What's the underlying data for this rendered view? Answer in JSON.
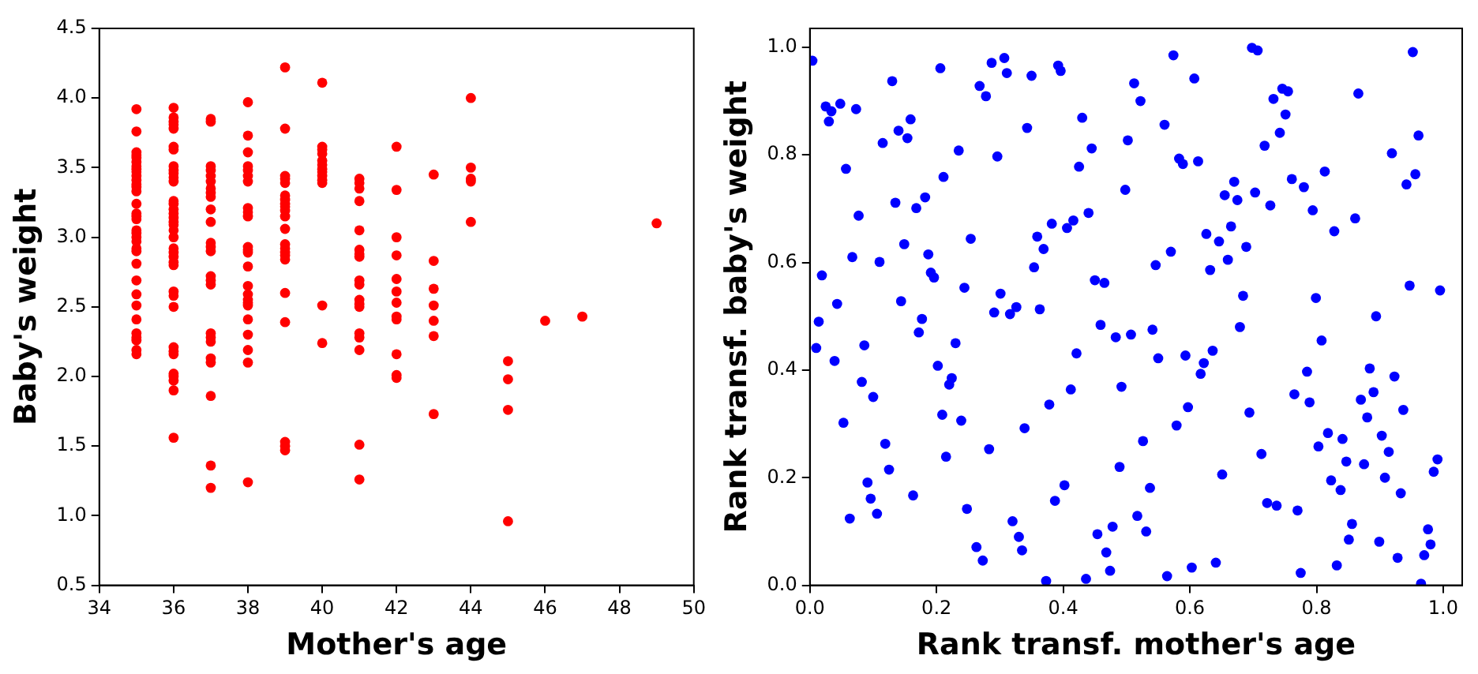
{
  "chart_data": [
    {
      "type": "scatter",
      "xlabel": "Mother's age",
      "ylabel": "Baby's weight",
      "marker": "circle",
      "grid": false,
      "xlim": [
        34,
        50
      ],
      "ylim": [
        0.5,
        4.5
      ],
      "xticks": [
        34,
        36,
        38,
        40,
        42,
        44,
        46,
        48,
        50
      ],
      "yticks": [
        {
          "value": 0.5,
          "label": "0.5"
        },
        {
          "value": 1,
          "label": "1.0"
        },
        {
          "value": 1.5,
          "label": "1.5"
        },
        {
          "value": 2,
          "label": "2.0"
        },
        {
          "value": 2.5,
          "label": "2.5"
        },
        {
          "value": 3,
          "label": "3.0"
        },
        {
          "value": 3.5,
          "label": "3.5"
        },
        {
          "value": 4,
          "label": "4.0"
        },
        {
          "value": 4.5,
          "label": "4.5"
        }
      ],
      "series": [
        {
          "color": "#ff0000",
          "x": [
            35,
            35,
            35,
            35,
            35,
            35,
            35,
            35,
            35,
            35,
            35,
            35,
            35,
            35,
            35,
            35,
            35,
            35,
            35,
            35,
            35,
            35,
            35,
            35,
            35,
            35,
            35,
            35,
            35,
            35,
            35,
            35,
            35,
            35,
            36,
            36,
            36,
            36,
            36,
            36,
            36,
            36,
            36,
            36,
            36,
            36,
            36,
            36,
            36,
            36,
            36,
            36,
            36,
            36,
            36,
            36,
            36,
            36,
            36,
            36,
            36,
            36,
            36,
            36,
            36,
            36,
            36,
            36,
            36,
            36,
            36,
            37,
            37,
            37,
            37,
            37,
            37,
            37,
            37,
            37,
            37,
            37,
            37,
            37,
            37,
            37,
            37,
            37,
            37,
            37,
            37,
            37,
            37,
            37,
            37,
            37,
            38,
            38,
            38,
            38,
            38,
            38,
            38,
            38,
            38,
            38,
            38,
            38,
            38,
            38,
            38,
            38,
            38,
            38,
            38,
            38,
            38,
            38,
            38,
            38,
            39,
            39,
            39,
            39,
            39,
            39,
            39,
            39,
            39,
            39,
            39,
            39,
            39,
            39,
            39,
            39,
            39,
            39,
            39,
            39,
            39,
            39,
            40,
            40,
            40,
            40,
            40,
            40,
            40,
            40,
            40,
            40,
            40,
            40,
            40,
            41,
            41,
            41,
            41,
            41,
            41,
            41,
            41,
            41,
            41,
            41,
            41,
            41,
            41,
            41,
            41,
            41,
            41,
            42,
            42,
            42,
            42,
            42,
            42,
            42,
            42,
            42,
            42,
            42,
            42,
            43,
            43,
            43,
            43,
            43,
            43,
            43,
            44,
            44,
            44,
            44,
            44,
            45,
            45,
            45,
            45,
            46,
            47,
            49
          ],
          "values": [
            3.92,
            3.76,
            3.61,
            3.59,
            3.57,
            3.54,
            3.51,
            3.49,
            3.47,
            3.44,
            3.41,
            3.38,
            3.36,
            3.33,
            3.24,
            3.17,
            3.15,
            3.13,
            3.05,
            3.03,
            3.0,
            2.97,
            2.92,
            2.9,
            2.81,
            2.69,
            2.59,
            2.51,
            2.41,
            2.31,
            2.28,
            2.26,
            2.19,
            2.16,
            3.93,
            3.86,
            3.83,
            3.81,
            3.78,
            3.65,
            3.63,
            3.51,
            3.48,
            3.46,
            3.43,
            3.4,
            3.26,
            3.24,
            3.2,
            3.17,
            3.14,
            3.11,
            3.09,
            3.05,
            3.0,
            2.92,
            2.89,
            2.86,
            2.82,
            2.8,
            2.61,
            2.58,
            2.5,
            2.21,
            2.18,
            2.16,
            2.02,
            2.0,
            1.97,
            1.9,
            1.56,
            3.85,
            3.83,
            3.51,
            3.48,
            3.44,
            3.4,
            3.35,
            3.32,
            3.29,
            3.2,
            3.11,
            2.96,
            2.93,
            2.9,
            2.72,
            2.69,
            2.66,
            2.31,
            2.28,
            2.25,
            2.13,
            2.1,
            1.86,
            1.36,
            1.2,
            3.97,
            3.73,
            3.61,
            3.51,
            3.48,
            3.44,
            3.4,
            3.21,
            3.18,
            3.15,
            2.93,
            2.91,
            2.89,
            2.79,
            2.65,
            2.59,
            2.55,
            2.53,
            2.51,
            2.41,
            2.3,
            2.19,
            2.1,
            1.24,
            4.22,
            3.78,
            3.44,
            3.42,
            3.39,
            3.3,
            3.27,
            3.24,
            3.22,
            3.19,
            3.15,
            3.06,
            2.95,
            2.92,
            2.89,
            2.87,
            2.84,
            2.6,
            2.39,
            1.53,
            1.5,
            1.47,
            4.11,
            3.65,
            3.63,
            3.6,
            3.55,
            3.52,
            3.49,
            3.47,
            3.44,
            3.41,
            3.39,
            2.51,
            2.24,
            3.42,
            3.39,
            3.35,
            3.26,
            3.05,
            2.91,
            2.88,
            2.86,
            2.69,
            2.66,
            2.55,
            2.52,
            2.5,
            2.31,
            2.28,
            2.19,
            1.51,
            1.26,
            3.65,
            3.34,
            3.0,
            2.87,
            2.7,
            2.61,
            2.53,
            2.43,
            2.41,
            2.16,
            2.01,
            1.99,
            3.45,
            2.83,
            2.63,
            2.51,
            2.4,
            2.29,
            1.73,
            4.0,
            3.5,
            3.42,
            3.4,
            3.11,
            2.11,
            1.98,
            1.76,
            0.96,
            2.4,
            2.43,
            3.1
          ]
        }
      ]
    },
    {
      "type": "scatter",
      "xlabel": "Rank transf. mother's age",
      "ylabel": "Rank transf. baby's weight",
      "marker": "circle",
      "grid": false,
      "xlim": [
        0,
        1.03
      ],
      "ylim": [
        0,
        1.035
      ],
      "xticks": [
        {
          "value": 0,
          "label": "0.0"
        },
        {
          "value": 0.2,
          "label": "0.2"
        },
        {
          "value": 0.4,
          "label": "0.4"
        },
        {
          "value": 0.6,
          "label": "0.6"
        },
        {
          "value": 0.8,
          "label": "0.8"
        },
        {
          "value": 1,
          "label": "1.0"
        }
      ],
      "yticks": [
        {
          "value": 0,
          "label": "0.0"
        },
        {
          "value": 0.2,
          "label": "0.2"
        },
        {
          "value": 0.4,
          "label": "0.4"
        },
        {
          "value": 0.6,
          "label": "0.6"
        },
        {
          "value": 0.8,
          "label": "0.8"
        },
        {
          "value": 1,
          "label": "1.0"
        }
      ],
      "series": [
        {
          "color": "#0000ff",
          "x": [
            0.004,
            0.206,
            0.307,
            0.287,
            0.311,
            0.392,
            0.396,
            0.35,
            0.13,
            0.268,
            0.278,
            0.025,
            0.048,
            0.034,
            0.073,
            0.03,
            0.159,
            0.14,
            0.154,
            0.343,
            0.43,
            0.115,
            0.235,
            0.296,
            0.445,
            0.057,
            0.425,
            0.211,
            0.182,
            0.135,
            0.168,
            0.077,
            0.44,
            0.382,
            0.416,
            0.406,
            0.359,
            0.254,
            0.149,
            0.369,
            0.067,
            0.187,
            0.11,
            0.354,
            0.191,
            0.196,
            0.019,
            0.244,
            0.45,
            0.465,
            0.301,
            0.144,
            0.043,
            0.014,
            0.177,
            0.291,
            0.316,
            0.326,
            0.363,
            0.459,
            0.483,
            0.01,
            0.172,
            0.086,
            0.039,
            0.23,
            0.421,
            0.202,
            0.224,
            0.22,
            0.082,
            0.1,
            0.412,
            0.492,
            0.489,
            0.378,
            0.053,
            0.239,
            0.209,
            0.339,
            0.283,
            0.119,
            0.125,
            0.215,
            0.402,
            0.091,
            0.096,
            0.387,
            0.163,
            0.248,
            0.106,
            0.063,
            0.32,
            0.33,
            0.454,
            0.478,
            0.335,
            0.263,
            0.273,
            0.468,
            0.474,
            0.436,
            0.373,
            0.574,
            0.698,
            0.707,
            0.952,
            0.512,
            0.607,
            0.522,
            0.746,
            0.755,
            0.732,
            0.866,
            0.751,
            0.56,
            0.961,
            0.502,
            0.742,
            0.718,
            0.919,
            0.583,
            0.589,
            0.613,
            0.813,
            0.761,
            0.67,
            0.942,
            0.956,
            0.498,
            0.78,
            0.655,
            0.675,
            0.703,
            0.727,
            0.794,
            0.861,
            0.665,
            0.828,
            0.626,
            0.646,
            0.689,
            0.57,
            0.66,
            0.546,
            0.632,
            0.947,
            0.995,
            0.684,
            0.799,
            0.894,
            0.507,
            0.541,
            0.679,
            0.808,
            0.55,
            0.593,
            0.622,
            0.636,
            0.617,
            0.785,
            0.884,
            0.923,
            0.765,
            0.789,
            0.87,
            0.89,
            0.597,
            0.937,
            0.694,
            0.88,
            0.579,
            0.526,
            0.818,
            0.803,
            0.841,
            0.903,
            0.914,
            0.713,
            0.847,
            0.875,
            0.991,
            0.985,
            0.651,
            0.908,
            0.823,
            0.838,
            0.933,
            0.537,
            0.722,
            0.737,
            0.77,
            0.517,
            0.856,
            0.976,
            0.531,
            0.851,
            0.899,
            0.98,
            0.97,
            0.928,
            0.641,
            0.603,
            0.832,
            0.775,
            0.564,
            0.965
          ],
          "values": [
            0.975,
            0.961,
            0.98,
            0.971,
            0.952,
            0.966,
            0.956,
            0.947,
            0.937,
            0.928,
            0.909,
            0.89,
            0.895,
            0.881,
            0.885,
            0.862,
            0.866,
            0.845,
            0.831,
            0.85,
            0.869,
            0.822,
            0.808,
            0.797,
            0.812,
            0.774,
            0.778,
            0.759,
            0.721,
            0.711,
            0.701,
            0.687,
            0.692,
            0.672,
            0.678,
            0.664,
            0.648,
            0.644,
            0.634,
            0.625,
            0.61,
            0.615,
            0.601,
            0.591,
            0.581,
            0.572,
            0.576,
            0.553,
            0.567,
            0.562,
            0.542,
            0.528,
            0.523,
            0.49,
            0.495,
            0.507,
            0.504,
            0.517,
            0.513,
            0.484,
            0.461,
            0.441,
            0.47,
            0.446,
            0.417,
            0.45,
            0.431,
            0.408,
            0.385,
            0.373,
            0.378,
            0.35,
            0.364,
            0.369,
            0.22,
            0.336,
            0.302,
            0.306,
            0.317,
            0.292,
            0.253,
            0.263,
            0.215,
            0.239,
            0.186,
            0.191,
            0.161,
            0.157,
            0.167,
            0.142,
            0.133,
            0.124,
            0.119,
            0.09,
            0.095,
            0.109,
            0.065,
            0.071,
            0.046,
            0.061,
            0.027,
            0.012,
            0.008,
            0.985,
            0.999,
            0.994,
            0.991,
            0.933,
            0.942,
            0.9,
            0.923,
            0.918,
            0.904,
            0.914,
            0.875,
            0.856,
            0.836,
            0.827,
            0.841,
            0.817,
            0.803,
            0.793,
            0.783,
            0.788,
            0.769,
            0.755,
            0.75,
            0.745,
            0.764,
            0.735,
            0.74,
            0.725,
            0.716,
            0.73,
            0.706,
            0.697,
            0.682,
            0.667,
            0.658,
            0.653,
            0.639,
            0.629,
            0.62,
            0.605,
            0.595,
            0.586,
            0.557,
            0.548,
            0.538,
            0.534,
            0.5,
            0.466,
            0.475,
            0.48,
            0.455,
            0.422,
            0.427,
            0.413,
            0.436,
            0.393,
            0.397,
            0.403,
            0.388,
            0.355,
            0.34,
            0.345,
            0.359,
            0.331,
            0.326,
            0.321,
            0.312,
            0.297,
            0.268,
            0.283,
            0.258,
            0.272,
            0.278,
            0.248,
            0.244,
            0.23,
            0.225,
            0.234,
            0.211,
            0.206,
            0.2,
            0.195,
            0.177,
            0.171,
            0.181,
            0.153,
            0.148,
            0.139,
            0.129,
            0.114,
            0.104,
            0.1,
            0.085,
            0.081,
            0.076,
            0.056,
            0.051,
            0.042,
            0.033,
            0.037,
            0.023,
            0.017,
            0.003
          ]
        }
      ]
    }
  ]
}
